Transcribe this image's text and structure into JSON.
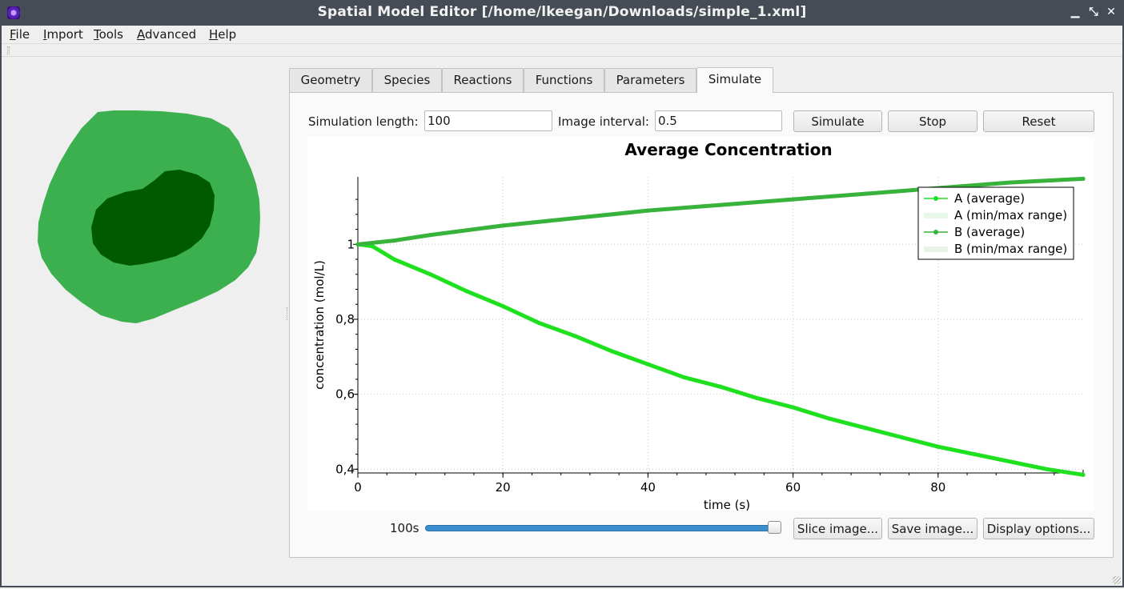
{
  "window": {
    "title": "Spatial Model Editor [/home/lkeegan/Downloads/simple_1.xml]",
    "minimize_glyph": "▁",
    "maximize_glyph": "⤡",
    "close_glyph": "✕"
  },
  "menu": {
    "items": [
      {
        "first": "F",
        "rest": "ile"
      },
      {
        "first": "I",
        "rest": "mport"
      },
      {
        "first": "T",
        "rest": "ools"
      },
      {
        "first": "A",
        "rest": "dvanced"
      },
      {
        "first": "H",
        "rest": "elp"
      }
    ]
  },
  "tabs": [
    "Geometry",
    "Species",
    "Reactions",
    "Functions",
    "Parameters",
    "Simulate"
  ],
  "active_tab": "Simulate",
  "simulate": {
    "length_label": "Simulation length:",
    "length_value": "100",
    "interval_label": "Image interval:",
    "interval_value": "0.5",
    "simulate_button": "Simulate",
    "stop_button": "Stop",
    "reset_button": "Reset",
    "slider_time": "100s",
    "slider_fraction": 1.0,
    "slice_button": "Slice image...",
    "save_button": "Save image...",
    "display_button": "Display options..."
  },
  "geometry_colors": {
    "outer": "#3cb04e",
    "inner": "#005a00",
    "background": "#efefef"
  },
  "chart_data": {
    "type": "line",
    "title": "Average Concentration",
    "xlabel": "time (s)",
    "ylabel": "concentration (mol/L)",
    "xlim": [
      0,
      100
    ],
    "ylim": [
      0.39,
      1.18
    ],
    "x_ticks": [
      0,
      20,
      40,
      60,
      80
    ],
    "y_ticks": [
      0.4,
      0.6,
      0.8,
      1.0
    ],
    "x_tick_labels": [
      "0",
      "20",
      "40",
      "60",
      "80"
    ],
    "y_tick_labels": [
      "0,4",
      "0,6",
      "0,8",
      "1"
    ],
    "grid": true,
    "legend_position": "top-right",
    "legend": [
      "A (average)",
      "A (min/max range)",
      "B (average)",
      "B (min/max range)"
    ],
    "series": [
      {
        "name": "A (average)",
        "color": "#1fe01f",
        "x": [
          0,
          2,
          5,
          10,
          15,
          20,
          25,
          30,
          35,
          40,
          45,
          50,
          55,
          60,
          65,
          70,
          75,
          80,
          85,
          90,
          95,
          100
        ],
        "y": [
          1.0,
          0.995,
          0.96,
          0.92,
          0.875,
          0.835,
          0.79,
          0.755,
          0.715,
          0.68,
          0.645,
          0.62,
          0.59,
          0.565,
          0.535,
          0.51,
          0.485,
          0.46,
          0.44,
          0.42,
          0.4,
          0.385
        ]
      },
      {
        "name": "B (average)",
        "color": "#37b33c",
        "x": [
          0,
          5,
          10,
          20,
          30,
          40,
          50,
          60,
          70,
          80,
          90,
          100
        ],
        "y": [
          1.0,
          1.01,
          1.025,
          1.05,
          1.07,
          1.09,
          1.105,
          1.12,
          1.135,
          1.15,
          1.165,
          1.175
        ]
      }
    ]
  }
}
